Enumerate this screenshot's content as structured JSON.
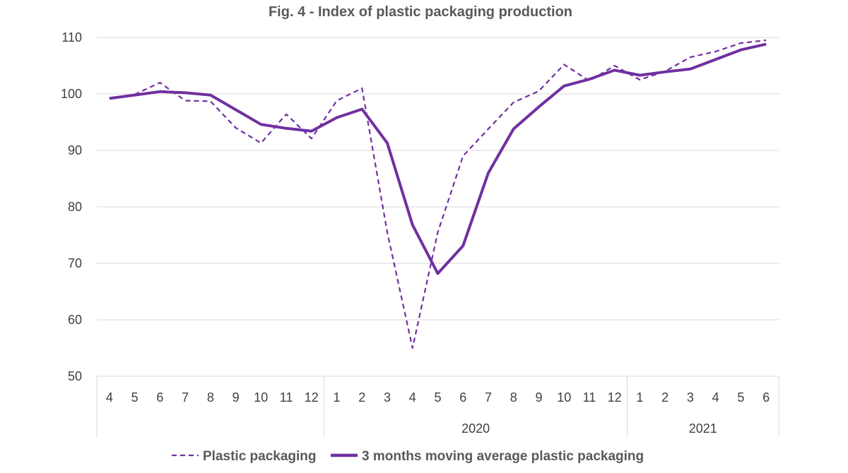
{
  "chart_data": {
    "type": "line",
    "title": "Fig. 4  - Index of plastic packaging production",
    "xlabel": "",
    "ylabel": "",
    "ylim": [
      50,
      110
    ],
    "yticks": [
      50,
      60,
      70,
      80,
      90,
      100,
      110
    ],
    "grid": true,
    "legend_position": "bottom",
    "categories": [
      "4",
      "5",
      "6",
      "7",
      "8",
      "9",
      "10",
      "11",
      "12",
      "1",
      "2",
      "3",
      "4",
      "5",
      "6",
      "7",
      "8",
      "9",
      "10",
      "11",
      "12",
      "1",
      "2",
      "3",
      "4",
      "5",
      "6"
    ],
    "year_groups": [
      {
        "label": "",
        "start": 0,
        "end": 8
      },
      {
        "label": "2020",
        "start": 9,
        "end": 20
      },
      {
        "label": "2021",
        "start": 21,
        "end": 26
      }
    ],
    "series": [
      {
        "name": "Plastic packaging",
        "style": "dashed",
        "color": "#7030A0",
        "values": [
          99.2,
          99.9,
          102.0,
          98.8,
          98.7,
          94.0,
          91.3,
          96.4,
          92.1,
          98.8,
          101.0,
          75.5,
          55.0,
          75.5,
          89.0,
          93.8,
          98.5,
          100.5,
          105.2,
          102.3,
          105.0,
          102.5,
          104.0,
          106.5,
          107.5,
          109.0,
          109.5
        ]
      },
      {
        "name": "3 months moving average plastic packaging",
        "style": "solid",
        "color": "#7030A0",
        "values": [
          99.2,
          99.8,
          100.4,
          100.2,
          99.8,
          97.2,
          94.6,
          93.9,
          93.4,
          95.8,
          97.3,
          91.3,
          76.8,
          68.2,
          73.1,
          86.0,
          93.8,
          97.7,
          101.4,
          102.6,
          104.2,
          103.3,
          103.9,
          104.4,
          106.1,
          107.8,
          108.8
        ]
      }
    ]
  }
}
